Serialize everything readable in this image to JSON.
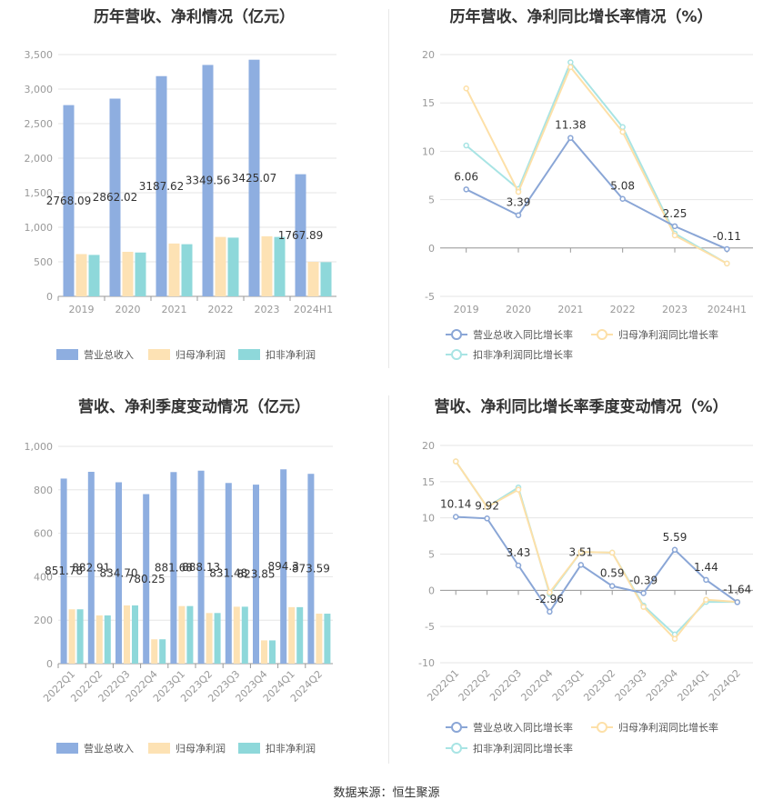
{
  "footer": "数据来源：恒生聚源",
  "colors": {
    "revenue": "#8eaee0",
    "net_profit": "#fde2b4",
    "deducted_profit": "#8ed8da",
    "line_revenue": "#8aa6d6",
    "line_net": "#fde0a8",
    "line_deducted": "#a8e4e4",
    "grid": "#e6e6e6",
    "axis_text": "#999999"
  },
  "chart_data": [
    {
      "type": "bar",
      "title": "历年营收、净利情况（亿元）",
      "categories": [
        "2019",
        "2020",
        "2021",
        "2022",
        "2023",
        "2024H1"
      ],
      "ylim": [
        0,
        3500
      ],
      "yticks": [
        "0",
        "500",
        "1,000",
        "1,500",
        "2,000",
        "2,500",
        "3,000",
        "3,500"
      ],
      "series": [
        {
          "name": "营业总收入",
          "values": [
            2768.09,
            2862.02,
            3187.62,
            3349.56,
            3425.07,
            1767.89
          ],
          "labels": [
            "2768.09",
            "2862.02",
            "3187.62",
            "3349.56",
            "3425.07",
            "1767.89"
          ]
        },
        {
          "name": "归母净利润",
          "values": [
            612,
            645,
            765,
            860,
            870,
            500
          ]
        },
        {
          "name": "扣非净利润",
          "values": [
            600,
            635,
            755,
            850,
            860,
            495
          ]
        }
      ],
      "legend": "bottom",
      "grid": true
    },
    {
      "type": "line",
      "title": "历年营收、净利同比增长率情况（%）",
      "categories": [
        "2019",
        "2020",
        "2021",
        "2022",
        "2023",
        "2024H1"
      ],
      "ylim": [
        -5,
        20
      ],
      "yticks": [
        "-5",
        "0",
        "5",
        "10",
        "15",
        "20"
      ],
      "series": [
        {
          "name": "营业总收入同比增长率",
          "values": [
            6.06,
            3.39,
            11.38,
            5.08,
            2.25,
            -0.11
          ],
          "labels": [
            "6.06",
            "3.39",
            "11.38",
            "5.08",
            "2.25",
            "-0.11"
          ]
        },
        {
          "name": "归母净利润同比增长率",
          "values": [
            16.5,
            5.8,
            18.7,
            12.0,
            1.3,
            -1.6
          ]
        },
        {
          "name": "扣非净利润同比增长率",
          "values": [
            10.6,
            6.1,
            19.2,
            12.5,
            1.5,
            -1.6
          ]
        }
      ],
      "legend": "bottom",
      "grid": true
    },
    {
      "type": "bar",
      "title": "营收、净利季度变动情况（亿元）",
      "categories": [
        "2022Q1",
        "2022Q2",
        "2022Q3",
        "2022Q4",
        "2023Q1",
        "2023Q2",
        "2023Q3",
        "2023Q4",
        "2024Q1",
        "2024Q2"
      ],
      "ylim": [
        0,
        1000
      ],
      "yticks": [
        "0",
        "200",
        "400",
        "600",
        "800",
        "1,000"
      ],
      "series": [
        {
          "name": "营业总收入",
          "values": [
            851.78,
            882.91,
            834.7,
            780.25,
            881.68,
            888.13,
            831.48,
            823.85,
            894.3,
            873.59
          ],
          "labels": [
            "851.78",
            "882.91",
            "834.70",
            "780.25",
            "881.68",
            "888.13",
            "831.48",
            "823.85",
            "894.3",
            "873.59"
          ]
        },
        {
          "name": "归母净利润",
          "values": [
            250,
            222,
            268,
            112,
            265,
            233,
            262,
            107,
            260,
            230
          ]
        },
        {
          "name": "扣非净利润",
          "values": [
            250,
            222,
            268,
            112,
            265,
            233,
            262,
            107,
            260,
            230
          ]
        }
      ],
      "legend": "bottom",
      "grid": true
    },
    {
      "type": "line",
      "title": "营收、净利同比增长率季度变动情况（%）",
      "categories": [
        "2022Q1",
        "2022Q2",
        "2022Q3",
        "2022Q4",
        "2023Q1",
        "2023Q2",
        "2023Q3",
        "2023Q4",
        "2024Q1",
        "2024Q2"
      ],
      "ylim": [
        -10,
        20
      ],
      "yticks": [
        "-10",
        "-5",
        "0",
        "5",
        "10",
        "15",
        "20"
      ],
      "series": [
        {
          "name": "营业总收入同比增长率",
          "values": [
            10.14,
            9.92,
            3.43,
            -2.96,
            3.51,
            0.59,
            -0.39,
            5.59,
            1.44,
            -1.64
          ],
          "labels": [
            "10.14",
            "9.92",
            "3.43",
            "-2.96",
            "3.51",
            "0.59",
            "-0.39",
            "5.59",
            "1.44",
            "-1.64"
          ]
        },
        {
          "name": "归母净利润同比增长率",
          "values": [
            17.8,
            11.5,
            13.9,
            -0.3,
            5.3,
            5.2,
            -2.3,
            -6.7,
            -1.3,
            -1.6
          ]
        },
        {
          "name": "扣非净利润同比增长率",
          "values": [
            17.8,
            11.5,
            14.2,
            -0.5,
            5.3,
            5.2,
            -2.1,
            -6.1,
            -1.6,
            -1.6
          ]
        }
      ],
      "legend": "bottom",
      "grid": true
    }
  ]
}
